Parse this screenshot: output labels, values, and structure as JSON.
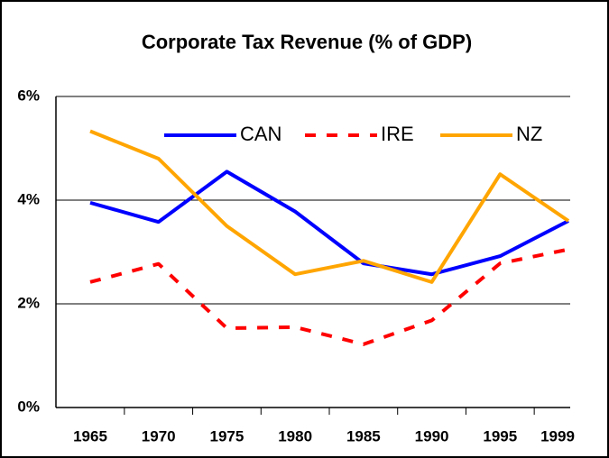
{
  "chart_data": {
    "type": "line",
    "title": "Corporate Tax Revenue (% of GDP)",
    "categories": [
      "1965",
      "1970",
      "1975",
      "1980",
      "1985",
      "1990",
      "1995",
      "1999"
    ],
    "series": [
      {
        "name": "CAN",
        "color": "#0000ff",
        "dash": "solid",
        "values": [
          3.95,
          3.58,
          4.55,
          3.78,
          2.78,
          2.57,
          2.92,
          3.6
        ]
      },
      {
        "name": "IRE",
        "color": "#ff0000",
        "dash": "dashed",
        "values": [
          2.42,
          2.77,
          1.53,
          1.55,
          1.22,
          1.68,
          2.78,
          3.05
        ]
      },
      {
        "name": "NZ",
        "color": "#ffa500",
        "dash": "solid",
        "values": [
          5.33,
          4.8,
          3.5,
          2.57,
          2.83,
          2.42,
          4.5,
          3.6
        ]
      }
    ],
    "ylim": [
      0,
      6
    ],
    "yticks": [
      {
        "value": 0,
        "label": "0%"
      },
      {
        "value": 2,
        "label": "2%"
      },
      {
        "value": 4,
        "label": "4%"
      },
      {
        "value": 6,
        "label": "6%"
      }
    ],
    "grid": true,
    "legend": "top"
  }
}
